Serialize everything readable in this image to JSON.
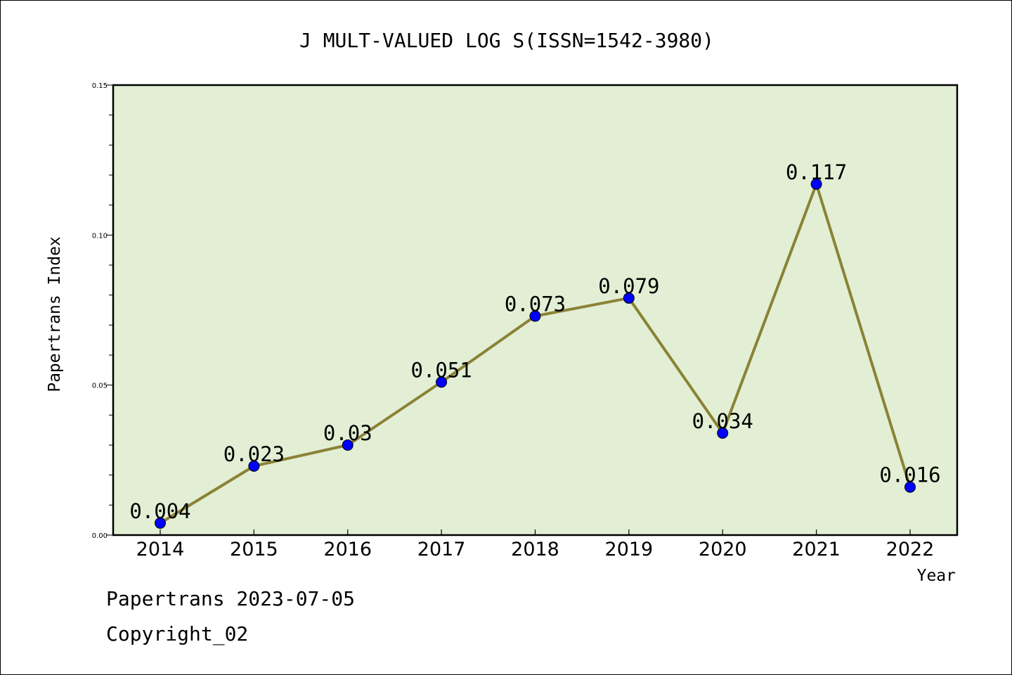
{
  "colors": {
    "plot_background": "#e2efd5",
    "line": "#8b8235",
    "marker": "#0000ff"
  },
  "footer": {
    "date_line": "Papertrans 2023-07-05",
    "copyright": "Copyright_02"
  },
  "chart_data": {
    "type": "line",
    "title": "J MULT-VALUED LOG S(ISSN=1542-3980)",
    "xlabel": "Year",
    "ylabel": "Papertrans Index",
    "categories": [
      "2014",
      "2015",
      "2016",
      "2017",
      "2018",
      "2019",
      "2020",
      "2021",
      "2022"
    ],
    "values": [
      0.004,
      0.023,
      0.03,
      0.051,
      0.073,
      0.079,
      0.034,
      0.117,
      0.016
    ],
    "data_labels": [
      "0.004",
      "0.023",
      "0.03",
      "0.051",
      "0.073",
      "0.079",
      "0.034",
      "0.117",
      "0.016"
    ],
    "ylim": [
      0,
      0.15
    ],
    "yticks": [
      0,
      0.05,
      0.1,
      0.15
    ],
    "ytick_labels": [
      "0.00",
      "0.05",
      "0.10",
      "0.15"
    ],
    "y_minor_step": 0.01,
    "grid": false,
    "legend": "none"
  }
}
